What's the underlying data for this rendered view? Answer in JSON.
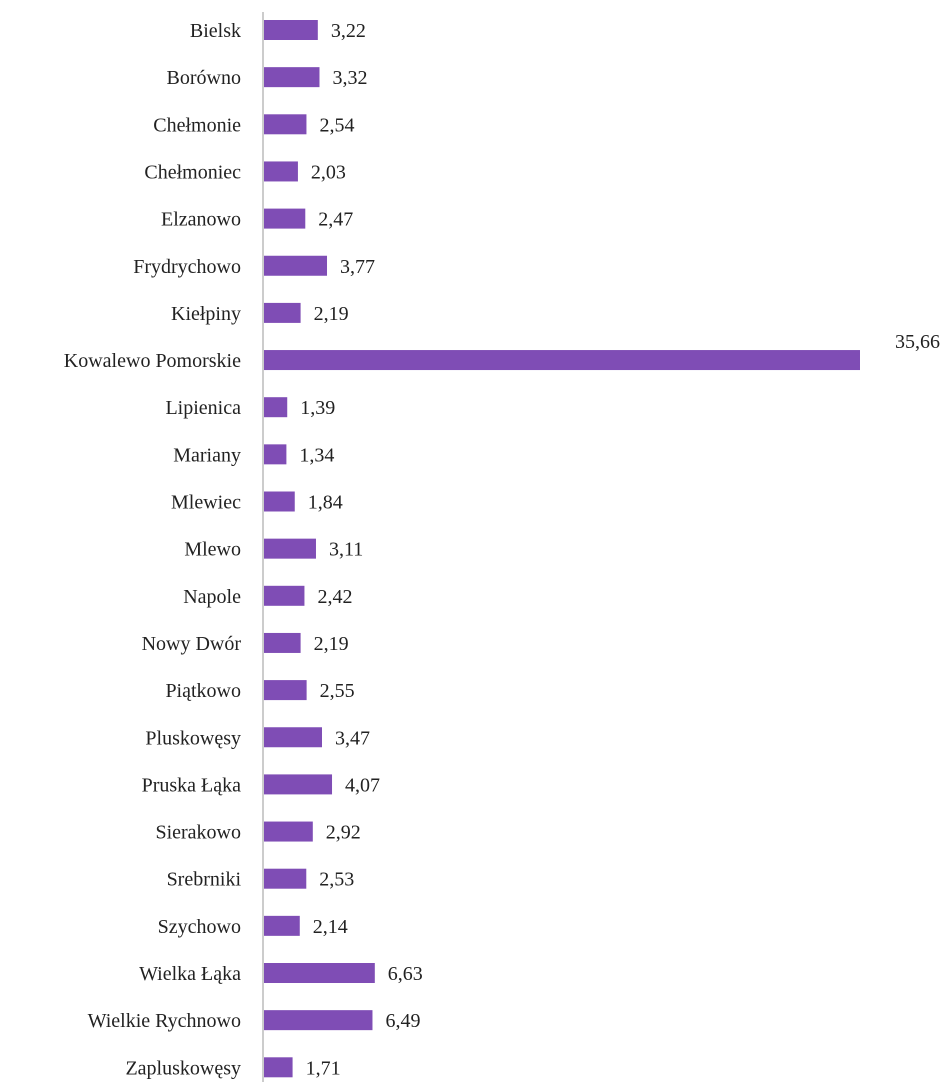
{
  "chart_data": {
    "type": "bar",
    "orientation": "horizontal",
    "categories": [
      "Bielsk",
      "Borówno",
      "Chełmonie",
      "Chełmoniec",
      "Elzanowo",
      "Frydrychowo",
      "Kiełpiny",
      "Kowalewo Pomorskie",
      "Lipienica",
      "Mariany",
      "Mlewiec",
      "Mlewo",
      "Napole",
      "Nowy Dwór",
      "Piątkowo",
      "Pluskowęsy",
      "Pruska Łąka",
      "Sierakowo",
      "Srebrniki",
      "Szychowo",
      "Wielka Łąka",
      "Wielkie Rychnowo",
      "Zapluskowęsy"
    ],
    "values": [
      3.22,
      3.32,
      2.54,
      2.03,
      2.47,
      3.77,
      2.19,
      35.66,
      1.39,
      1.34,
      1.84,
      3.11,
      2.42,
      2.19,
      2.55,
      3.47,
      4.07,
      2.92,
      2.53,
      2.14,
      6.63,
      6.49,
      1.71
    ],
    "value_labels": [
      "3,22",
      "3,32",
      "2,54",
      "2,03",
      "2,47",
      "3,77",
      "2,19",
      "35,66",
      "1,39",
      "1,34",
      "1,84",
      "3,11",
      "2,42",
      "2,19",
      "2,55",
      "3,47",
      "4,07",
      "2,92",
      "2,53",
      "2,14",
      "6,63",
      "6,49",
      "1,71"
    ],
    "title": "",
    "xlabel": "",
    "ylabel": "",
    "xlim": [
      0,
      35.66
    ],
    "grid": false,
    "legend": "none",
    "bar_color": "#7f4db5",
    "axis_color": "#999999"
  }
}
